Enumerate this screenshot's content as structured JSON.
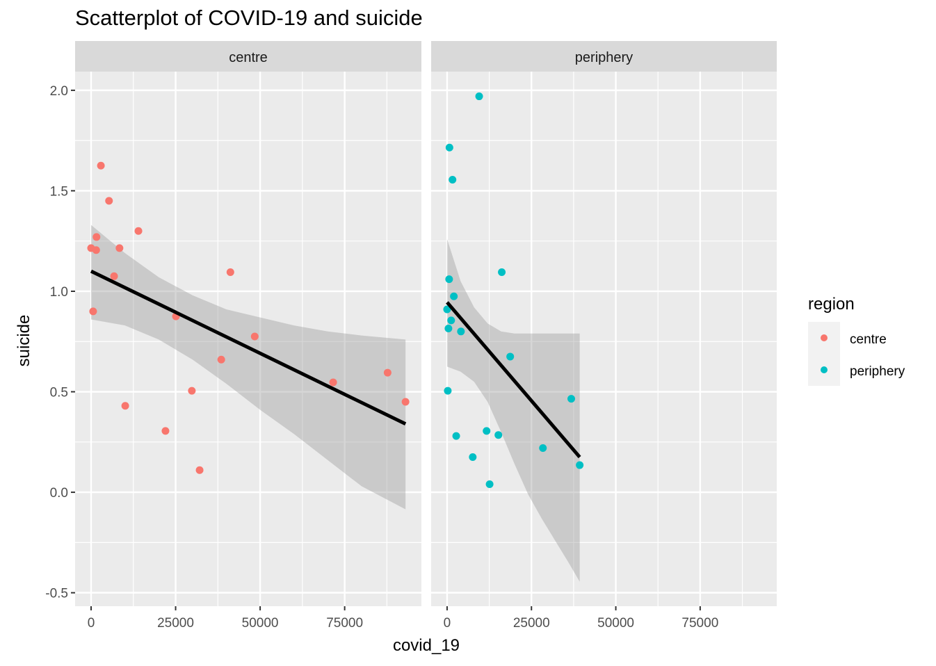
{
  "chart_data": {
    "type": "scatter",
    "title": "Scatterplot of COVID-19 and suicide",
    "xlabel": "covid_19",
    "ylabel": "suicide",
    "xlim": [
      -4730,
      97700
    ],
    "ylim": [
      -0.567,
      2.093
    ],
    "x_ticks": [
      0,
      25000,
      50000,
      75000
    ],
    "x_tick_labels": [
      "0",
      "25000",
      "50000",
      "75000"
    ],
    "x_minor": [
      12500,
      37500,
      62500,
      87500
    ],
    "y_ticks": [
      -0.5,
      0.0,
      0.5,
      1.0,
      1.5,
      2.0
    ],
    "y_tick_labels": [
      "-0.5",
      "0.0",
      "0.5",
      "1.0",
      "1.5",
      "2.0"
    ],
    "y_minor": [
      -0.25,
      0.25,
      0.75,
      1.25,
      1.75
    ],
    "grid": true,
    "facet_by": "region",
    "legend": {
      "title": "region",
      "position": "right",
      "entries": [
        {
          "label": "centre",
          "color": "#F8766D"
        },
        {
          "label": "periphery",
          "color": "#00BFC4"
        }
      ]
    },
    "panels": [
      {
        "label": "centre",
        "color": "#F8766D",
        "points": [
          {
            "x": 2900,
            "y": 1.625
          },
          {
            "x": 5300,
            "y": 1.45
          },
          {
            "x": 14000,
            "y": 1.3
          },
          {
            "x": 1600,
            "y": 1.27
          },
          {
            "x": 0,
            "y": 1.215
          },
          {
            "x": 1500,
            "y": 1.205
          },
          {
            "x": 8400,
            "y": 1.215
          },
          {
            "x": 6800,
            "y": 1.075
          },
          {
            "x": 600,
            "y": 0.9
          },
          {
            "x": 10100,
            "y": 0.43
          },
          {
            "x": 25100,
            "y": 0.875
          },
          {
            "x": 22000,
            "y": 0.305
          },
          {
            "x": 29800,
            "y": 0.505
          },
          {
            "x": 32100,
            "y": 0.11
          },
          {
            "x": 38500,
            "y": 0.66
          },
          {
            "x": 41200,
            "y": 1.095
          },
          {
            "x": 48400,
            "y": 0.775
          },
          {
            "x": 71600,
            "y": 0.547
          },
          {
            "x": 87700,
            "y": 0.595
          },
          {
            "x": 93000,
            "y": 0.45
          }
        ],
        "fit": {
          "x": [
            0,
            93000
          ],
          "y": [
            1.1,
            0.34
          ]
        },
        "ribbon": [
          {
            "x": 0,
            "lo": 0.86,
            "hi": 1.33
          },
          {
            "x": 10000,
            "lo": 0.83,
            "hi": 1.19
          },
          {
            "x": 20000,
            "lo": 0.76,
            "hi": 1.07
          },
          {
            "x": 30000,
            "lo": 0.66,
            "hi": 0.98
          },
          {
            "x": 40000,
            "lo": 0.54,
            "hi": 0.91
          },
          {
            "x": 50000,
            "lo": 0.41,
            "hi": 0.87
          },
          {
            "x": 60000,
            "lo": 0.29,
            "hi": 0.83
          },
          {
            "x": 70000,
            "lo": 0.16,
            "hi": 0.8
          },
          {
            "x": 80000,
            "lo": 0.03,
            "hi": 0.78
          },
          {
            "x": 93000,
            "lo": -0.085,
            "hi": 0.76
          }
        ]
      },
      {
        "label": "periphery",
        "color": "#00BFC4",
        "points": [
          {
            "x": 9500,
            "y": 1.97
          },
          {
            "x": 700,
            "y": 1.715
          },
          {
            "x": 1600,
            "y": 1.555
          },
          {
            "x": 16200,
            "y": 1.095
          },
          {
            "x": 600,
            "y": 1.06
          },
          {
            "x": 2000,
            "y": 0.975
          },
          {
            "x": 0,
            "y": 0.91
          },
          {
            "x": 1200,
            "y": 0.855
          },
          {
            "x": 400,
            "y": 0.815
          },
          {
            "x": 4100,
            "y": 0.8
          },
          {
            "x": 18700,
            "y": 0.675
          },
          {
            "x": 200,
            "y": 0.505
          },
          {
            "x": 2700,
            "y": 0.28
          },
          {
            "x": 7600,
            "y": 0.175
          },
          {
            "x": 11700,
            "y": 0.305
          },
          {
            "x": 12600,
            "y": 0.04
          },
          {
            "x": 15200,
            "y": 0.285
          },
          {
            "x": 28400,
            "y": 0.22
          },
          {
            "x": 36800,
            "y": 0.465
          },
          {
            "x": 39300,
            "y": 0.135
          }
        ],
        "fit": {
          "x": [
            0,
            39300
          ],
          "y": [
            0.945,
            0.175
          ]
        },
        "ribbon": [
          {
            "x": 0,
            "lo": 0.625,
            "hi": 1.26
          },
          {
            "x": 4000,
            "lo": 0.6,
            "hi": 1.05
          },
          {
            "x": 8000,
            "lo": 0.55,
            "hi": 0.92
          },
          {
            "x": 12000,
            "lo": 0.45,
            "hi": 0.84
          },
          {
            "x": 16000,
            "lo": 0.3,
            "hi": 0.8
          },
          {
            "x": 20000,
            "lo": 0.14,
            "hi": 0.79
          },
          {
            "x": 24000,
            "lo": -0.01,
            "hi": 0.79
          },
          {
            "x": 28000,
            "lo": -0.13,
            "hi": 0.79
          },
          {
            "x": 32000,
            "lo": -0.24,
            "hi": 0.79
          },
          {
            "x": 36000,
            "lo": -0.35,
            "hi": 0.79
          },
          {
            "x": 39300,
            "lo": -0.445,
            "hi": 0.79
          }
        ]
      }
    ]
  }
}
